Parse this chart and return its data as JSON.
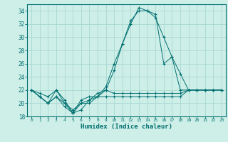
{
  "xlabel": "Humidex (Indice chaleur)",
  "x": [
    0,
    1,
    2,
    3,
    4,
    5,
    6,
    7,
    8,
    9,
    10,
    11,
    12,
    13,
    14,
    15,
    16,
    17,
    18,
    19,
    20,
    21,
    22,
    23
  ],
  "line1": [
    22,
    21,
    20,
    21,
    20,
    19,
    20,
    20,
    21,
    21,
    21,
    21,
    21,
    21,
    21,
    21,
    21,
    21,
    21,
    22,
    22,
    22,
    22,
    22
  ],
  "line2": [
    22,
    21,
    20,
    21,
    19.5,
    18.5,
    20,
    20.5,
    21,
    22,
    21.5,
    21.5,
    21.5,
    21.5,
    21.5,
    21.5,
    21.5,
    21.5,
    21.5,
    22,
    22,
    22,
    22,
    22
  ],
  "line3": [
    22,
    21,
    20,
    22,
    20,
    18.5,
    20.5,
    21,
    21,
    22.5,
    26,
    29,
    32.5,
    34,
    34,
    33,
    30,
    27,
    24.5,
    22,
    22,
    22,
    22,
    22
  ],
  "line4": [
    22,
    21.5,
    21,
    22,
    20.5,
    18.5,
    19,
    20.5,
    21.5,
    22,
    25,
    29,
    32,
    34.5,
    34,
    33.5,
    26,
    27,
    22,
    22,
    22,
    22,
    22,
    22
  ],
  "bg_color": "#ceeee8",
  "grid_color": "#aad8d2",
  "line_color": "#007070",
  "ylim": [
    18,
    35
  ],
  "yticks": [
    18,
    20,
    22,
    24,
    26,
    28,
    30,
    32,
    34
  ],
  "xticks": [
    0,
    1,
    2,
    3,
    4,
    5,
    6,
    7,
    8,
    9,
    10,
    11,
    12,
    13,
    14,
    15,
    16,
    17,
    18,
    19,
    20,
    21,
    22,
    23
  ],
  "xticklabels": [
    "0",
    "1",
    "2",
    "3",
    "4",
    "5",
    "6",
    "7",
    "8",
    "9",
    "10",
    "11",
    "12",
    "13",
    "14",
    "15",
    "16",
    "17",
    "18",
    "19",
    "20",
    "21",
    "22",
    "23"
  ]
}
